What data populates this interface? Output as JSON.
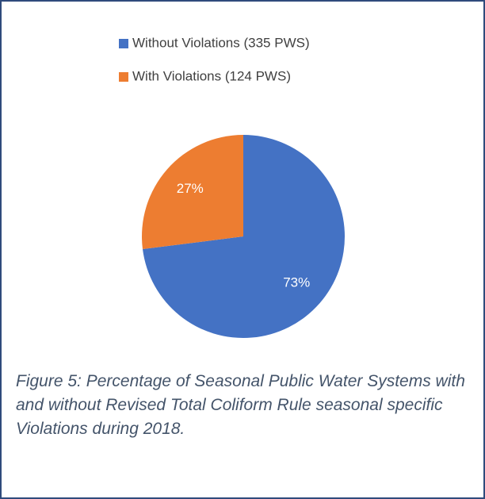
{
  "chart_data": {
    "type": "pie",
    "categories": [
      "Without Violations (335 PWS)",
      "With Violations (124 PWS)"
    ],
    "values": [
      73,
      27
    ],
    "value_labels": [
      "73%",
      "27%"
    ],
    "colors": [
      "#4472c4",
      "#ed7d31"
    ],
    "legend": "top",
    "caption": "Figure 5: Percentage of Seasonal Public Water Systems with and without Revised Total Coliform Rule seasonal specific Violations during 2018."
  }
}
